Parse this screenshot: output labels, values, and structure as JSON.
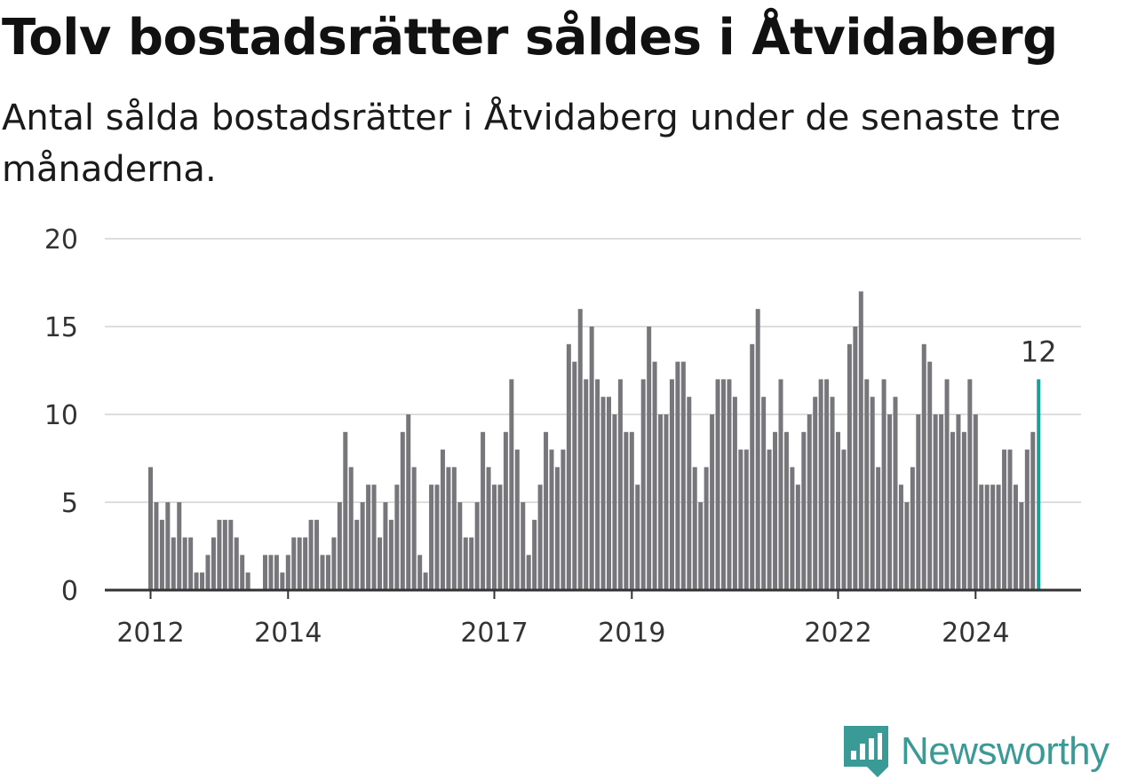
{
  "title": "Tolv bostadsrätter såldes i Åtvidaberg",
  "subtitle": "Antal sålda bostadsrätter i Åtvidaberg under de senaste tre månaderna.",
  "brand": {
    "name": "Newsworthy",
    "color": "#3a9a96",
    "icon": "newsworthy-logo-icon"
  },
  "colors": {
    "bar": "#77767b",
    "highlight": "#1b9e98",
    "grid": "#dddddd",
    "axis": "#333333"
  },
  "chart_data": {
    "type": "bar",
    "title": "Tolv bostadsrätter såldes i Åtvidaberg",
    "xlabel": "",
    "ylabel": "",
    "ylim": [
      0,
      20
    ],
    "yticks": [
      0,
      5,
      10,
      15,
      20
    ],
    "xticks": [
      "2012",
      "2014",
      "2017",
      "2019",
      "2022",
      "2024"
    ],
    "grid": true,
    "start_month": "2012-01",
    "highlight_last": true,
    "highlight_label": "12",
    "values": [
      7,
      5,
      4,
      5,
      3,
      5,
      3,
      3,
      1,
      1,
      2,
      3,
      4,
      4,
      4,
      3,
      2,
      1,
      0,
      0,
      2,
      2,
      2,
      1,
      2,
      3,
      3,
      3,
      4,
      4,
      2,
      2,
      3,
      5,
      9,
      7,
      4,
      5,
      6,
      6,
      3,
      5,
      4,
      6,
      9,
      10,
      7,
      2,
      1,
      6,
      6,
      8,
      7,
      7,
      5,
      3,
      3,
      5,
      9,
      7,
      6,
      6,
      9,
      12,
      8,
      5,
      2,
      4,
      6,
      9,
      8,
      7,
      8,
      14,
      13,
      16,
      12,
      15,
      12,
      11,
      11,
      10,
      12,
      9,
      9,
      6,
      12,
      15,
      13,
      10,
      10,
      12,
      13,
      13,
      11,
      7,
      5,
      7,
      10,
      12,
      12,
      12,
      11,
      8,
      8,
      14,
      16,
      11,
      8,
      9,
      12,
      9,
      7,
      6,
      9,
      10,
      11,
      12,
      12,
      11,
      9,
      8,
      14,
      15,
      17,
      12,
      11,
      7,
      12,
      10,
      11,
      6,
      5,
      7,
      10,
      14,
      13,
      10,
      10,
      12,
      9,
      10,
      9,
      12,
      10,
      6,
      6,
      6,
      6,
      8,
      8,
      6,
      5,
      8,
      9,
      12
    ]
  }
}
